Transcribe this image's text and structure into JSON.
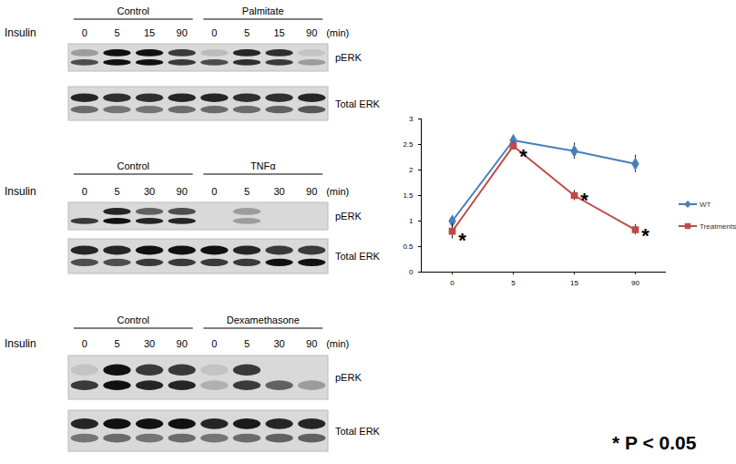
{
  "chart_data": {
    "type": "line",
    "categories": [
      "0",
      "5",
      "15",
      "90"
    ],
    "ylim": [
      0,
      3
    ],
    "yticks": [
      0,
      0.5,
      1,
      1.5,
      2,
      2.5,
      3
    ],
    "grid": false,
    "legend": "right",
    "series": [
      {
        "name": "WT",
        "color": "#4a7ebb",
        "marker": "diamond",
        "values": [
          1.0,
          2.58,
          2.37,
          2.12
        ],
        "errors": [
          0.03,
          0.05,
          0.16,
          0.17
        ]
      },
      {
        "name": "Treatments",
        "color": "#be4b48",
        "marker": "square",
        "values": [
          0.8,
          2.47,
          1.5,
          0.83
        ],
        "errors": [
          0.15,
          0.08,
          0.1,
          0.1
        ]
      }
    ],
    "annotations": [
      {
        "text": "*",
        "x": "0",
        "y": 0.7
      },
      {
        "text": "*",
        "x": "5",
        "y": 2.35
      },
      {
        "text": "*",
        "x": "15",
        "y": 1.5
      },
      {
        "text": "*",
        "x": "90",
        "y": 0.8
      }
    ]
  },
  "blots": {
    "panels": [
      {
        "groups": [
          "Control",
          "Palmitate"
        ],
        "row_label": "Insulin",
        "times": [
          "0",
          "5",
          "15",
          "90"
        ],
        "unit": "(min)",
        "rows": [
          {
            "label": "pERK",
            "upper": [
              0.3,
              1,
              1,
              0.8,
              0.15,
              0.9,
              0.85,
              0.1
            ],
            "lower": [
              0.7,
              1,
              1,
              0.8,
              0.7,
              0.85,
              0.8,
              0.3
            ]
          },
          {
            "label": "Total ERK",
            "upper": [
              0.9,
              0.85,
              0.85,
              0.9,
              0.9,
              0.85,
              0.85,
              0.9
            ],
            "lower": [
              0.55,
              0.5,
              0.5,
              0.55,
              0.55,
              0.55,
              0.6,
              0.65
            ]
          }
        ]
      },
      {
        "groups": [
          "Control",
          "TNFα"
        ],
        "row_label": "Insulin",
        "times": [
          "0",
          "5",
          "30",
          "90"
        ],
        "unit": "(min)",
        "rows": [
          {
            "label": "pERK",
            "upper": [
              0,
              0.9,
              0.6,
              0.7,
              0,
              0.3,
              0,
              0
            ],
            "lower": [
              0.8,
              1,
              0.9,
              0.9,
              0,
              0.3,
              0,
              0
            ]
          },
          {
            "label": "Total ERK",
            "upper": [
              0.9,
              0.9,
              1,
              1,
              1,
              0.9,
              0.8,
              0.8
            ],
            "lower": [
              0.7,
              0.7,
              0.8,
              0.8,
              0.8,
              0.8,
              1,
              1
            ]
          }
        ]
      },
      {
        "groups": [
          "Control",
          "Dexamethasone"
        ],
        "row_label": "Insulin",
        "times": [
          "0",
          "5",
          "30",
          "90"
        ],
        "unit": "(min)",
        "rows": [
          {
            "label": "pERK",
            "upper": [
              0.1,
              1,
              0.8,
              0.8,
              0.1,
              0.8,
              0,
              0
            ],
            "lower": [
              0.8,
              1,
              0.9,
              0.9,
              0.2,
              0.8,
              0.6,
              0.3
            ]
          },
          {
            "label": "Total ERK",
            "upper": [
              0.9,
              1,
              1,
              1,
              0.9,
              0.95,
              0.9,
              0.9
            ],
            "lower": [
              0.5,
              0.55,
              0.5,
              0.55,
              0.5,
              0.55,
              0.6,
              0.6
            ]
          }
        ]
      }
    ]
  },
  "footnote": "* P < 0.05"
}
